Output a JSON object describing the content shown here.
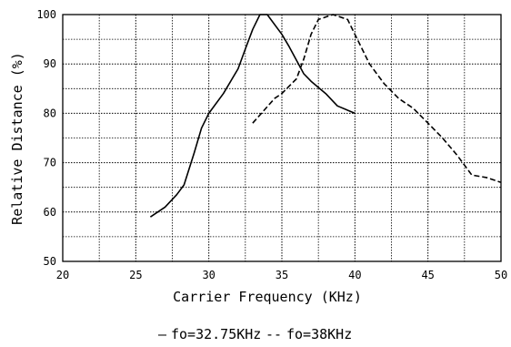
{
  "chart_data": {
    "type": "line",
    "title": "",
    "xlabel": "Carrier Frequency (KHz)",
    "ylabel": "Relative Distance (%)",
    "xlim": [
      20,
      50
    ],
    "ylim": [
      50,
      100
    ],
    "grid": true,
    "legend_position": "bottom",
    "x_ticks": [
      "20",
      "25",
      "30",
      "35",
      "40",
      "45",
      "50"
    ],
    "y_ticks": [
      "50",
      "60",
      "70",
      "80",
      "90",
      "100"
    ],
    "series": [
      {
        "name": "fo=32.75KHz",
        "legend_text": "fo=32.75KHz",
        "legend_symbol": "–",
        "style": "solid",
        "color": "#000000",
        "points": [
          [
            26,
            59
          ],
          [
            27,
            61
          ],
          [
            27.8,
            63.5
          ],
          [
            28.3,
            65.5
          ],
          [
            29,
            72
          ],
          [
            29.5,
            77
          ],
          [
            30,
            80
          ],
          [
            31,
            84
          ],
          [
            32,
            89
          ],
          [
            32.5,
            93
          ],
          [
            33,
            97
          ],
          [
            33.5,
            100
          ],
          [
            34,
            100
          ],
          [
            35,
            96
          ],
          [
            35.5,
            93.5
          ],
          [
            36.5,
            88
          ],
          [
            37,
            86.5
          ],
          [
            38,
            84
          ],
          [
            38.8,
            81.5
          ],
          [
            40,
            80
          ]
        ]
      },
      {
        "name": "fo=38KHz",
        "legend_text": "fo=38KHz",
        "legend_symbol": "--",
        "style": "dashed",
        "color": "#000000",
        "points": [
          [
            33,
            78
          ],
          [
            34.5,
            83
          ],
          [
            35,
            84
          ],
          [
            36,
            87
          ],
          [
            36.5,
            91
          ],
          [
            37,
            96
          ],
          [
            37.5,
            99
          ],
          [
            38.5,
            100
          ],
          [
            39.5,
            99
          ],
          [
            40,
            96
          ],
          [
            41,
            90
          ],
          [
            42,
            86
          ],
          [
            43,
            83
          ],
          [
            44,
            81
          ],
          [
            45,
            78
          ],
          [
            46,
            75
          ],
          [
            47,
            71.5
          ],
          [
            48,
            67.5
          ],
          [
            49,
            67
          ],
          [
            50,
            66
          ]
        ]
      }
    ]
  }
}
